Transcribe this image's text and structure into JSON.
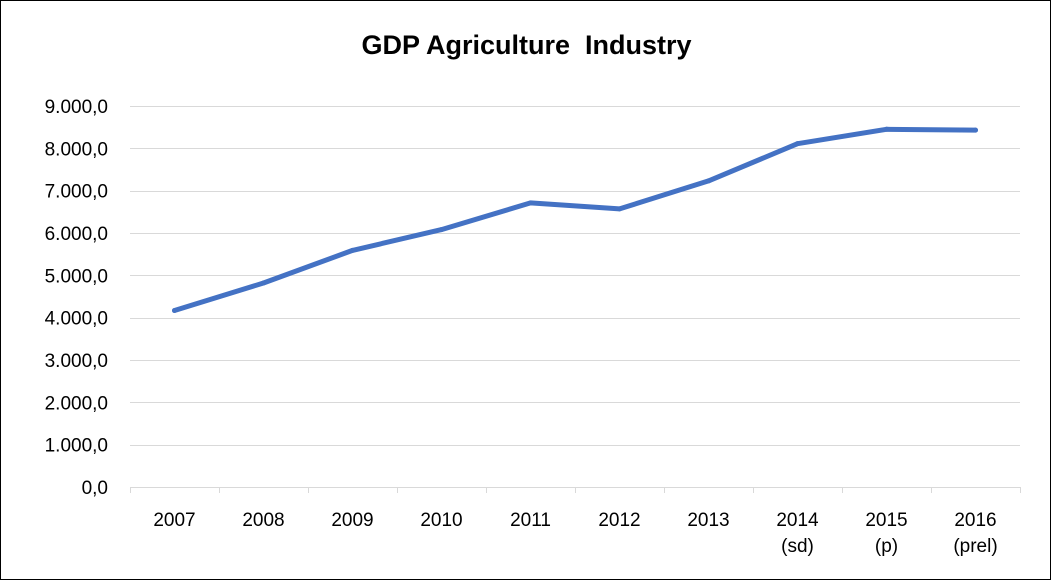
{
  "chart_data": {
    "type": "line",
    "title": "GDP Agriculture  Industry",
    "xlabel": "",
    "ylabel": "",
    "categories": [
      [
        "2007"
      ],
      [
        "2008"
      ],
      [
        "2009"
      ],
      [
        "2010"
      ],
      [
        "2011"
      ],
      [
        "2012"
      ],
      [
        "2013"
      ],
      [
        "2014",
        "(sd)"
      ],
      [
        "2015",
        "(p)"
      ],
      [
        "2016",
        "(prel)"
      ]
    ],
    "series": [
      {
        "values": [
          4170,
          4820,
          5590,
          6080,
          6710,
          6570,
          7230,
          8110,
          8450,
          8430
        ]
      }
    ],
    "ylim": [
      0,
      9000
    ],
    "yticks": [
      0,
      1000,
      2000,
      3000,
      4000,
      5000,
      6000,
      7000,
      8000,
      9000
    ],
    "ytick_labels": [
      "0,0",
      "1.000,0",
      "2.000,0",
      "3.000,0",
      "4.000,0",
      "5.000,0",
      "6.000,0",
      "7.000,0",
      "8.000,0",
      "9.000,0"
    ],
    "grid": true,
    "legend": "none",
    "colors": {
      "line": "#4472C4",
      "grid": "#D9D9D9",
      "axis": "#D9D9D9",
      "text": "#000000"
    }
  }
}
